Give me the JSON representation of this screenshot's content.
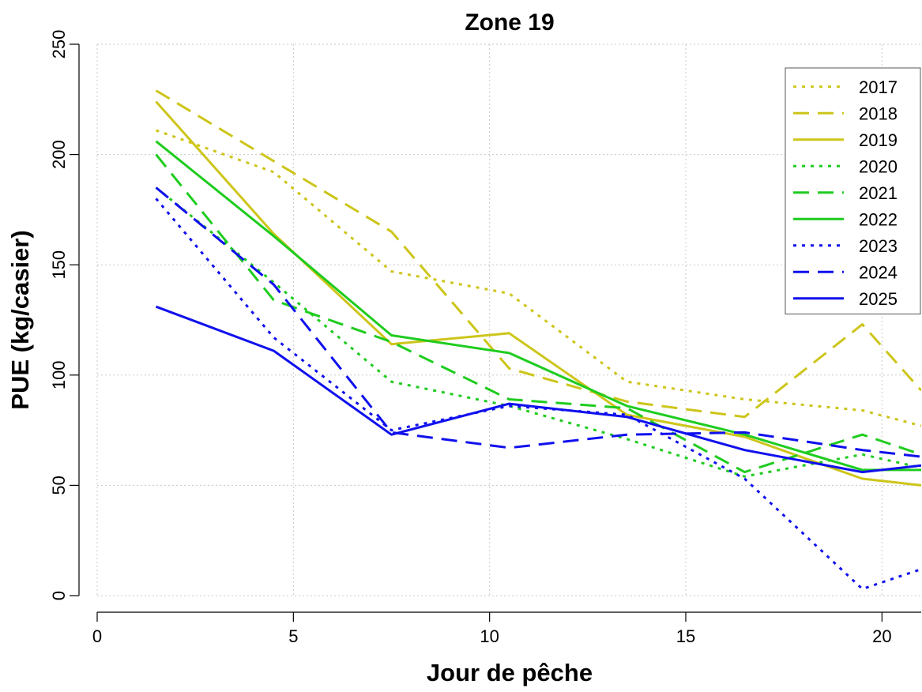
{
  "chart_data": {
    "type": "line",
    "title": "Zone 19",
    "xlabel": "Jour de pêche",
    "ylabel": "PUE (kg/casier)",
    "xlim": [
      0,
      21
    ],
    "ylim": [
      0,
      250
    ],
    "xticks": [
      0,
      5,
      10,
      15,
      20
    ],
    "yticks": [
      0,
      50,
      100,
      150,
      200,
      250
    ],
    "grid": true,
    "legend_position": "top-right",
    "x": [
      1.5,
      4.5,
      7.5,
      10.5,
      13.5,
      16.5,
      19.5,
      21
    ],
    "series": [
      {
        "name": "2017",
        "color": "#cdc51a",
        "dash": "dotted",
        "values": [
          211,
          192,
          147,
          137,
          97,
          89,
          84,
          77
        ]
      },
      {
        "name": "2018",
        "color": "#cdc51a",
        "dash": "dashed",
        "values": [
          229,
          197,
          165,
          103,
          88,
          81,
          123,
          93
        ]
      },
      {
        "name": "2019",
        "color": "#cdc51a",
        "dash": "solid",
        "values": [
          224,
          164,
          114,
          119,
          82,
          72,
          53,
          50
        ]
      },
      {
        "name": "2020",
        "color": "#1fcc1f",
        "dash": "dotted",
        "values": [
          185,
          142,
          97,
          86,
          71,
          54,
          64,
          58
        ]
      },
      {
        "name": "2021",
        "color": "#1fcc1f",
        "dash": "dashed",
        "values": [
          200,
          134,
          115,
          89,
          85,
          56,
          73,
          64
        ]
      },
      {
        "name": "2022",
        "color": "#1fcc1f",
        "dash": "solid",
        "values": [
          206,
          163,
          118,
          110,
          86,
          73,
          57,
          57
        ]
      },
      {
        "name": "2023",
        "color": "#1010ee",
        "dash": "dotted",
        "values": [
          180,
          117,
          75,
          86,
          82,
          53,
          3,
          12
        ]
      },
      {
        "name": "2024",
        "color": "#1010ee",
        "dash": "dashed",
        "values": [
          185,
          141,
          74,
          67,
          73,
          74,
          66,
          63
        ]
      },
      {
        "name": "2025",
        "color": "#1010ee",
        "dash": "solid",
        "values": [
          131,
          111,
          73,
          87,
          81,
          66,
          56,
          59
        ]
      }
    ]
  }
}
